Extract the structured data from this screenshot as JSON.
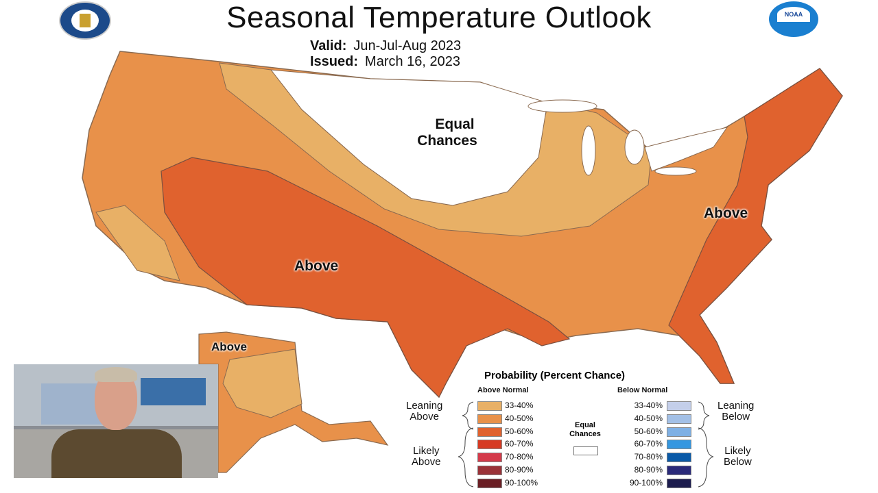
{
  "header": {
    "title": "Seasonal Temperature Outlook",
    "valid_label": "Valid:",
    "valid_value": "Jun-Jul-Aug 2023",
    "issued_label": "Issued:",
    "issued_value": "March 16, 2023",
    "left_logo": "Department of Commerce seal",
    "right_logo": "NOAA"
  },
  "map": {
    "labels": {
      "equal_chances": [
        "Equal",
        "Chances"
      ],
      "above_southwest": "Above",
      "above_east": "Above",
      "above_alaska": "Above"
    }
  },
  "legend": {
    "title": "Probability (Percent Chance)",
    "above_header": "Above Normal",
    "below_header": "Below Normal",
    "leaning_above": [
      "Leaning",
      "Above"
    ],
    "likely_above": [
      "Likely",
      "Above"
    ],
    "leaning_below": [
      "Leaning",
      "Below"
    ],
    "likely_below": [
      "Likely",
      "Below"
    ],
    "equal_chances": [
      "Equal",
      "Chances"
    ],
    "above": [
      {
        "range": "33-40%",
        "color": "#e8b066"
      },
      {
        "range": "40-50%",
        "color": "#e8914a"
      },
      {
        "range": "50-60%",
        "color": "#e0622e"
      },
      {
        "range": "60-70%",
        "color": "#d63a22"
      },
      {
        "range": "70-80%",
        "color": "#d43a4a"
      },
      {
        "range": "80-90%",
        "color": "#9a3238"
      },
      {
        "range": "90-100%",
        "color": "#6a1e24"
      }
    ],
    "below": [
      {
        "range": "33-40%",
        "color": "#c4cfea"
      },
      {
        "range": "40-50%",
        "color": "#a3c0e6"
      },
      {
        "range": "50-60%",
        "color": "#7fb0e4"
      },
      {
        "range": "60-70%",
        "color": "#3497e0"
      },
      {
        "range": "70-80%",
        "color": "#0a5aa8"
      },
      {
        "range": "80-90%",
        "color": "#2a2a7a"
      },
      {
        "range": "90-100%",
        "color": "#1c1c4e"
      }
    ]
  }
}
